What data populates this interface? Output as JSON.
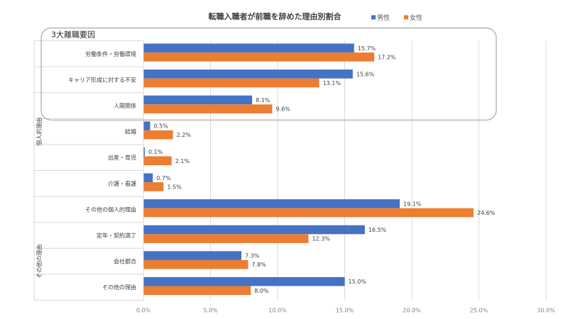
{
  "chart_data": {
    "type": "bar",
    "orientation": "horizontal",
    "title": "転職入職者が前職を辞めた理由別割合",
    "categories": [
      "労働条件・労働環境",
      "キャリア形成に対する不安",
      "人間関係",
      "結婚",
      "出産・育児",
      "介護・看護",
      "その他の個人的理由",
      "定年・契約満了",
      "会社都合",
      "その他の理由"
    ],
    "series": [
      {
        "name": "男性",
        "color": "#4472C4",
        "values": [
          15.7,
          15.6,
          8.1,
          0.5,
          0.1,
          0.7,
          19.1,
          16.5,
          7.3,
          15.0
        ],
        "labels": [
          "15.7%",
          "15.6%",
          "8.1%",
          "0.5%",
          "0.1%",
          "0.7%",
          "19.1%",
          "16.5%",
          "7.3%",
          "15.0%"
        ]
      },
      {
        "name": "女性",
        "color": "#ED7D31",
        "values": [
          17.2,
          13.1,
          9.6,
          2.2,
          2.1,
          1.5,
          24.6,
          12.3,
          7.8,
          8.0
        ],
        "labels": [
          "17.2%",
          "13.1%",
          "9.6%",
          "2.2%",
          "2.1%",
          "1.5%",
          "24.6%",
          "12.3%",
          "7.8%",
          "8.0%"
        ]
      }
    ],
    "xlim": [
      0,
      30
    ],
    "xticks": [
      0,
      5,
      10,
      15,
      20,
      25,
      30
    ],
    "xtick_labels": [
      "0.0%",
      "5.0%",
      "10.0%",
      "15.0%",
      "20.0%",
      "25.0%",
      "30.0%"
    ],
    "groups": [
      {
        "label": "個人的理由",
        "from": 0,
        "to": 6
      },
      {
        "label": "その他の理由",
        "from": 7,
        "to": 9
      }
    ],
    "highlight": {
      "label": "3大離職要因",
      "from": 0,
      "to": 2
    },
    "legend_position": "top-right",
    "grid": true
  }
}
